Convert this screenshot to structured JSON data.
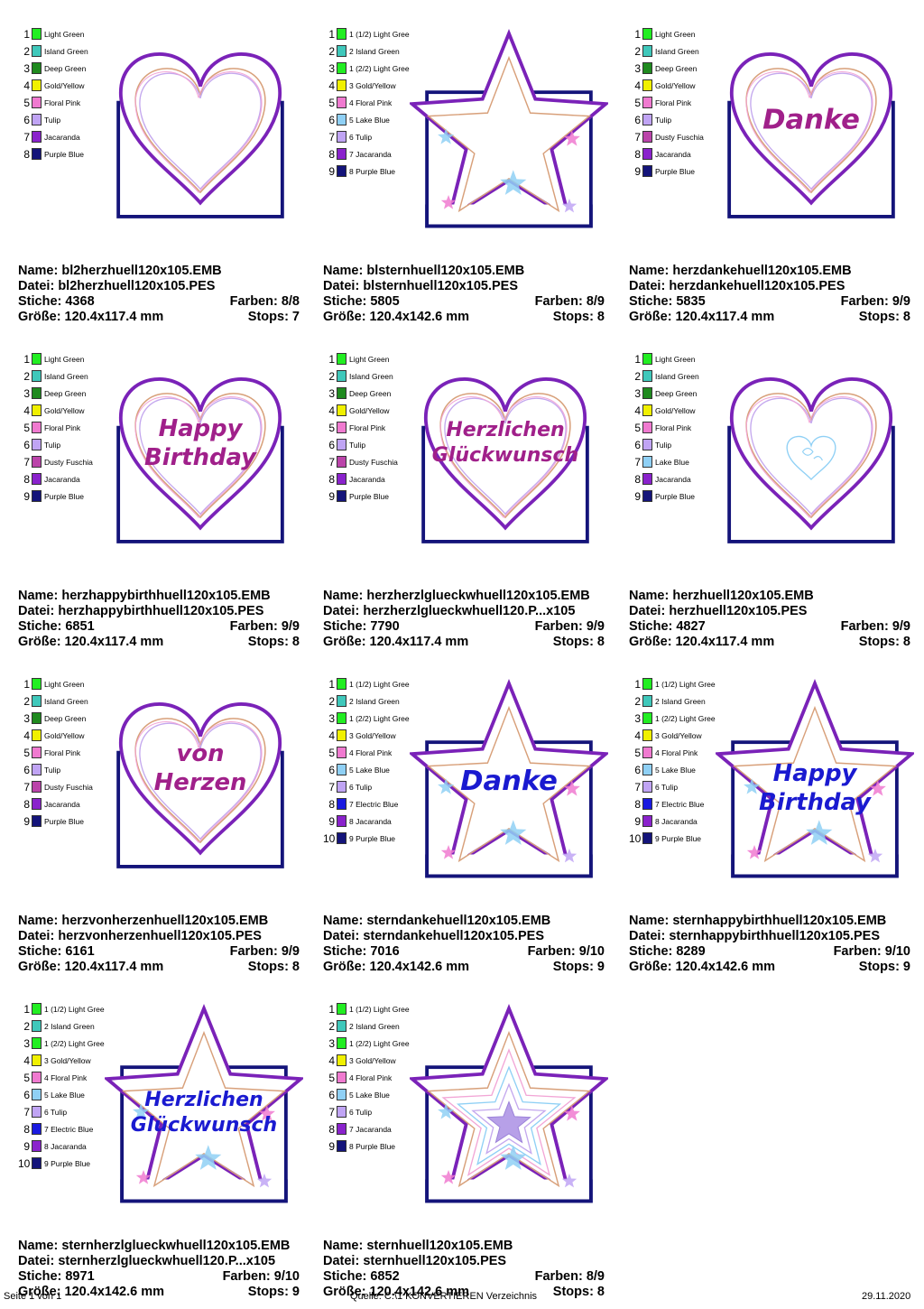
{
  "colors": {
    "Light Green": "#22ee22",
    "Island Green": "#3fc8bb",
    "Deep Green": "#1f8a1f",
    "Gold/Yellow": "#f0f000",
    "Floral Pink": "#f07ad0",
    "Tulip": "#c0a4f4",
    "Dusty Fuschia": "#bb44aa",
    "Jacaranda": "#8a22cc",
    "Purple Blue": "#14147a",
    "Lake Blue": "#8fd0f5",
    "Electric Blue": "#1a1ae0"
  },
  "labels": {
    "name": "Name:",
    "datei": "Datei:",
    "stiche": "Stiche:",
    "farben": "Farben:",
    "groesse": "Größe:",
    "stops": "Stops:"
  },
  "designs": [
    {
      "shape": "heart",
      "text": [],
      "colors": [
        "Light Green",
        "Island Green",
        "Deep Green",
        "Gold/Yellow",
        "Floral Pink",
        "Tulip",
        "Jacaranda",
        "Purple Blue"
      ],
      "color_labels": [
        "Light Green",
        "Island Green",
        "Deep Green",
        "Gold/Yellow",
        "Floral Pink",
        "Tulip",
        "Jacaranda",
        "Purple Blue"
      ],
      "name": "bl2herzhuell120x105.EMB",
      "datei": "bl2herzhuell120x105.PES",
      "stiche": "4368",
      "farben": "8/8",
      "groesse": "120.4x117.4 mm",
      "stops": "7"
    },
    {
      "shape": "star",
      "text": [],
      "colors": [
        "Light Green",
        "Island Green",
        "Light Green",
        "Gold/Yellow",
        "Floral Pink",
        "Lake Blue",
        "Tulip",
        "Jacaranda",
        "Purple Blue"
      ],
      "color_labels": [
        "1 (1/2) Light Gree",
        "2 Island Green",
        "1 (2/2) Light Gree",
        "3 Gold/Yellow",
        "4 Floral Pink",
        "5 Lake Blue",
        "6 Tulip",
        "7 Jacaranda",
        "8 Purple Blue"
      ],
      "name": "blsternhuell120x105.EMB",
      "datei": "blsternhuell120x105.PES",
      "stiche": "5805",
      "farben": "8/9",
      "groesse": "120.4x142.6 mm",
      "stops": "8"
    },
    {
      "shape": "heart",
      "text": [
        "Danke"
      ],
      "text_color": "#a0208a",
      "colors": [
        "Light Green",
        "Island Green",
        "Deep Green",
        "Gold/Yellow",
        "Floral Pink",
        "Tulip",
        "Dusty Fuschia",
        "Jacaranda",
        "Purple Blue"
      ],
      "color_labels": [
        "Light Green",
        "Island Green",
        "Deep Green",
        "Gold/Yellow",
        "Floral Pink",
        "Tulip",
        "Dusty Fuschia",
        "Jacaranda",
        "Purple Blue"
      ],
      "name": "herzdankehuell120x105.EMB",
      "datei": "herzdankehuell120x105.PES",
      "stiche": "5835",
      "farben": "9/9",
      "groesse": "120.4x117.4 mm",
      "stops": "8"
    },
    {
      "shape": "heart",
      "text": [
        "Happy",
        "Birthday"
      ],
      "text_color": "#a0208a",
      "colors": [
        "Light Green",
        "Island Green",
        "Deep Green",
        "Gold/Yellow",
        "Floral Pink",
        "Tulip",
        "Dusty Fuschia",
        "Jacaranda",
        "Purple Blue"
      ],
      "color_labels": [
        "Light Green",
        "Island Green",
        "Deep Green",
        "Gold/Yellow",
        "Floral Pink",
        "Tulip",
        "Dusty Fuschia",
        "Jacaranda",
        "Purple Blue"
      ],
      "name": "herzhappybirthhuell120x105.EMB",
      "datei": "herzhappybirthhuell120x105.PES",
      "stiche": "6851",
      "farben": "9/9",
      "groesse": "120.4x117.4 mm",
      "stops": "8"
    },
    {
      "shape": "heart",
      "text": [
        "Herzlichen",
        "Glückwunsch"
      ],
      "text_color": "#a0208a",
      "colors": [
        "Light Green",
        "Island Green",
        "Deep Green",
        "Gold/Yellow",
        "Floral Pink",
        "Tulip",
        "Dusty Fuschia",
        "Jacaranda",
        "Purple Blue"
      ],
      "color_labels": [
        "Light Green",
        "Island Green",
        "Deep Green",
        "Gold/Yellow",
        "Floral Pink",
        "Tulip",
        "Dusty Fuschia",
        "Jacaranda",
        "Purple Blue"
      ],
      "name": "herzherzlglueckwhuell120x105.EMB",
      "datei": "herzherzlglueckwhuell120.P...x105",
      "stiche": "7790",
      "farben": "9/9",
      "groesse": "120.4x117.4 mm",
      "stops": "8"
    },
    {
      "shape": "heart",
      "text": [],
      "small_heart": true,
      "colors": [
        "Light Green",
        "Island Green",
        "Deep Green",
        "Gold/Yellow",
        "Floral Pink",
        "Tulip",
        "Lake Blue",
        "Jacaranda",
        "Purple Blue"
      ],
      "color_labels": [
        "Light Green",
        "Island Green",
        "Deep Green",
        "Gold/Yellow",
        "Floral Pink",
        "Tulip",
        "Lake Blue",
        "Jacaranda",
        "Purple Blue"
      ],
      "name": "herzhuell120x105.EMB",
      "datei": "herzhuell120x105.PES",
      "stiche": "4827",
      "farben": "9/9",
      "groesse": "120.4x117.4 mm",
      "stops": "8"
    },
    {
      "shape": "heart",
      "text": [
        "von",
        "Herzen"
      ],
      "text_color": "#a0208a",
      "colors": [
        "Light Green",
        "Island Green",
        "Deep Green",
        "Gold/Yellow",
        "Floral Pink",
        "Tulip",
        "Dusty Fuschia",
        "Jacaranda",
        "Purple Blue"
      ],
      "color_labels": [
        "Light Green",
        "Island Green",
        "Deep Green",
        "Gold/Yellow",
        "Floral Pink",
        "Tulip",
        "Dusty Fuschia",
        "Jacaranda",
        "Purple Blue"
      ],
      "name": "herzvonherzenhuell120x105.EMB",
      "datei": "herzvonherzenhuell120x105.PES",
      "stiche": "6161",
      "farben": "9/9",
      "groesse": "120.4x117.4 mm",
      "stops": "8"
    },
    {
      "shape": "star",
      "text": [
        "Danke"
      ],
      "text_color": "#1a1ad0",
      "colors": [
        "Light Green",
        "Island Green",
        "Light Green",
        "Gold/Yellow",
        "Floral Pink",
        "Lake Blue",
        "Tulip",
        "Electric Blue",
        "Jacaranda",
        "Purple Blue"
      ],
      "color_labels": [
        "1 (1/2) Light Gree",
        "2 Island Green",
        "1 (2/2) Light Gree",
        "3 Gold/Yellow",
        "4 Floral Pink",
        "5 Lake Blue",
        "6 Tulip",
        "7 Electric Blue",
        "8 Jacaranda",
        "9 Purple Blue"
      ],
      "name": "sterndankehuell120x105.EMB",
      "datei": "sterndankehuell120x105.PES",
      "stiche": "7016",
      "farben": "9/10",
      "groesse": "120.4x142.6 mm",
      "stops": "9"
    },
    {
      "shape": "star",
      "text": [
        "Happy",
        "Birthday"
      ],
      "text_color": "#1a1ad0",
      "colors": [
        "Light Green",
        "Island Green",
        "Light Green",
        "Gold/Yellow",
        "Floral Pink",
        "Lake Blue",
        "Tulip",
        "Electric Blue",
        "Jacaranda",
        "Purple Blue"
      ],
      "color_labels": [
        "1 (1/2) Light Gree",
        "2 Island Green",
        "1 (2/2) Light Gree",
        "3 Gold/Yellow",
        "4 Floral Pink",
        "5 Lake Blue",
        "6 Tulip",
        "7 Electric Blue",
        "8 Jacaranda",
        "9 Purple Blue"
      ],
      "name": "sternhappybirthhuell120x105.EMB",
      "datei": "sternhappybirthhuell120x105.PES",
      "stiche": "8289",
      "farben": "9/10",
      "groesse": "120.4x142.6 mm",
      "stops": "9"
    },
    {
      "shape": "star",
      "text": [
        "Herzlichen",
        "Glückwunsch"
      ],
      "text_color": "#1a1ad0",
      "colors": [
        "Light Green",
        "Island Green",
        "Light Green",
        "Gold/Yellow",
        "Floral Pink",
        "Lake Blue",
        "Tulip",
        "Electric Blue",
        "Jacaranda",
        "Purple Blue"
      ],
      "color_labels": [
        "1 (1/2) Light Gree",
        "2 Island Green",
        "1 (2/2) Light Gree",
        "3 Gold/Yellow",
        "4 Floral Pink",
        "5 Lake Blue",
        "6 Tulip",
        "7 Electric Blue",
        "8 Jacaranda",
        "9 Purple Blue"
      ],
      "name": "sternherzlglueckwhuell120x105.EMB",
      "datei": "sternherzlglueckwhuell120.P...x105",
      "stiche": "8971",
      "farben": "9/10",
      "groesse": "120.4x142.6 mm",
      "stops": "9"
    },
    {
      "shape": "star",
      "text": [],
      "nested_stars": true,
      "colors": [
        "Light Green",
        "Island Green",
        "Light Green",
        "Gold/Yellow",
        "Floral Pink",
        "Lake Blue",
        "Tulip",
        "Jacaranda",
        "Purple Blue"
      ],
      "color_labels": [
        "1 (1/2) Light Gree",
        "2 Island Green",
        "1 (2/2) Light Gree",
        "3 Gold/Yellow",
        "4 Floral Pink",
        "5 Lake Blue",
        "6 Tulip",
        "7 Jacaranda",
        "8 Purple Blue"
      ],
      "name": "sternhuell120x105.EMB",
      "datei": "sternhuell120x105.PES",
      "stiche": "6852",
      "farben": "8/9",
      "groesse": "120.4x142.6 mm",
      "stops": "8"
    }
  ],
  "footer": {
    "page": "Seite 1 von 1",
    "source": "Quelle: C:\\1 KONVERTIEREN Verzeichnis",
    "date": "29.11.2020"
  }
}
